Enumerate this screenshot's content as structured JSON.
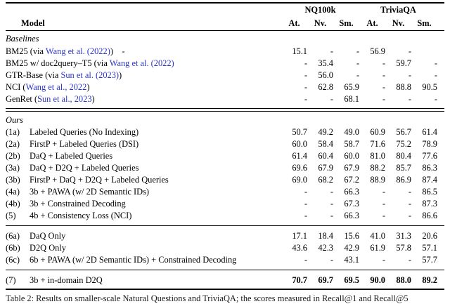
{
  "table": {
    "header": {
      "model_label": "Model",
      "groups": [
        {
          "label": "NQ100k"
        },
        {
          "label": "TriviaQA"
        }
      ],
      "subcols": [
        "At.",
        "Nv.",
        "Sm.",
        "At.",
        "Nv.",
        "Sm."
      ]
    },
    "sections": [
      {
        "heading": "Baselines",
        "rule_after": "double",
        "rows": [
          {
            "num": "",
            "parts": [
              {
                "t": "BM25 (via "
              },
              {
                "t": "Wang et al. (2022)",
                "link": true
              },
              {
                "t": ")    -"
              }
            ],
            "values": [
              "15.1",
              "-",
              "-",
              "56.9",
              "-",
              ""
            ]
          },
          {
            "num": "",
            "parts": [
              {
                "t": "BM25 w/ doc2query–T5 (via "
              },
              {
                "t": "Wang et al. (2022)",
                "link": true
              }
            ],
            "values": [
              "-",
              "35.4",
              "-",
              "-",
              "59.7",
              "-"
            ]
          },
          {
            "num": "",
            "parts": [
              {
                "t": "GTR-Base (via "
              },
              {
                "t": "Sun et al. (2023)",
                "link": true
              },
              {
                "t": ")"
              }
            ],
            "values": [
              "-",
              "56.0",
              "-",
              "-",
              "-",
              "-"
            ]
          },
          {
            "num": "",
            "parts": [
              {
                "t": "NCI ("
              },
              {
                "t": "Wang et al., 2022",
                "link": true
              },
              {
                "t": ")"
              }
            ],
            "values": [
              "-",
              "62.8",
              "65.9",
              "-",
              "88.8",
              "90.5"
            ]
          },
          {
            "num": "",
            "parts": [
              {
                "t": "GenRet ("
              },
              {
                "t": "Sun et al., 2023",
                "link": true
              },
              {
                "t": ")"
              }
            ],
            "values": [
              "-",
              "-",
              "68.1",
              "-",
              "-",
              "-"
            ]
          }
        ]
      },
      {
        "heading": "Ours",
        "rule_after": "single",
        "rows": [
          {
            "num": "(1a)",
            "parts": [
              {
                "t": "Labeled Queries (No Indexing)"
              }
            ],
            "values": [
              "50.7",
              "49.2",
              "49.0",
              "60.9",
              "56.7",
              "61.4"
            ]
          },
          {
            "num": "(2a)",
            "parts": [
              {
                "t": "FirstP + Labeled Queries (DSI)"
              }
            ],
            "values": [
              "60.0",
              "58.4",
              "58.7",
              "71.6",
              "75.2",
              "78.9"
            ]
          },
          {
            "num": "(2b)",
            "parts": [
              {
                "t": "DaQ + Labeled Queries"
              }
            ],
            "values": [
              "61.4",
              "60.4",
              "60.0",
              "81.0",
              "80.4",
              "77.6"
            ]
          },
          {
            "num": "(3a)",
            "parts": [
              {
                "t": "DaQ + D2Q + Labeled Queries"
              }
            ],
            "values": [
              "69.6",
              "67.9",
              "67.9",
              "88.2",
              "85.7",
              "86.3"
            ]
          },
          {
            "num": "(3b)",
            "parts": [
              {
                "t": "FirstP + DaQ + D2Q + Labeled Queries"
              }
            ],
            "values": [
              "69.0",
              "68.2",
              "67.2",
              "88.9",
              "86.9",
              "87.4"
            ]
          },
          {
            "num": "(4a)",
            "parts": [
              {
                "t": "3b + PAWA (w/ 2D Semantic IDs)"
              }
            ],
            "values": [
              "-",
              "-",
              "66.3",
              "-",
              "-",
              "86.5"
            ]
          },
          {
            "num": "(4b)",
            "parts": [
              {
                "t": "3b + Constrained Decoding"
              }
            ],
            "values": [
              "-",
              "-",
              "67.3",
              "-",
              "-",
              "87.3"
            ]
          },
          {
            "num": "(5)",
            "parts": [
              {
                "t": "4b + Consistency Loss (NCI)"
              }
            ],
            "values": [
              "-",
              "-",
              "66.3",
              "-",
              "-",
              "86.6"
            ]
          }
        ]
      },
      {
        "heading": null,
        "rule_after": "single",
        "rows": [
          {
            "num": "(6a)",
            "parts": [
              {
                "t": "DaQ Only"
              }
            ],
            "values": [
              "17.1",
              "18.4",
              "15.6",
              "41.0",
              "31.3",
              "20.6"
            ]
          },
          {
            "num": "(6b)",
            "parts": [
              {
                "t": "D2Q Only"
              }
            ],
            "values": [
              "43.6",
              "42.3",
              "42.9",
              "61.9",
              "57.8",
              "57.1"
            ]
          },
          {
            "num": "(6c)",
            "parts": [
              {
                "t": "6b + PAWA (w/ 2D Semantic IDs) + Constrained Decoding"
              }
            ],
            "values": [
              "-",
              "-",
              "43.1",
              "-",
              "-",
              "57.7"
            ]
          }
        ]
      },
      {
        "heading": null,
        "rule_after": "bottom",
        "rows": [
          {
            "num": "(7)",
            "parts": [
              {
                "t": "3b + in-domain D2Q"
              }
            ],
            "values": [
              "70.7",
              "69.7",
              "69.5",
              "90.0",
              "88.0",
              "89.2"
            ],
            "bold_values": true
          }
        ]
      }
    ]
  },
  "caption": {
    "text": "Table 2: Results on smaller-scale Natural Questions and TriviaQA; the scores measured in Recall@1 and Recall@5"
  }
}
